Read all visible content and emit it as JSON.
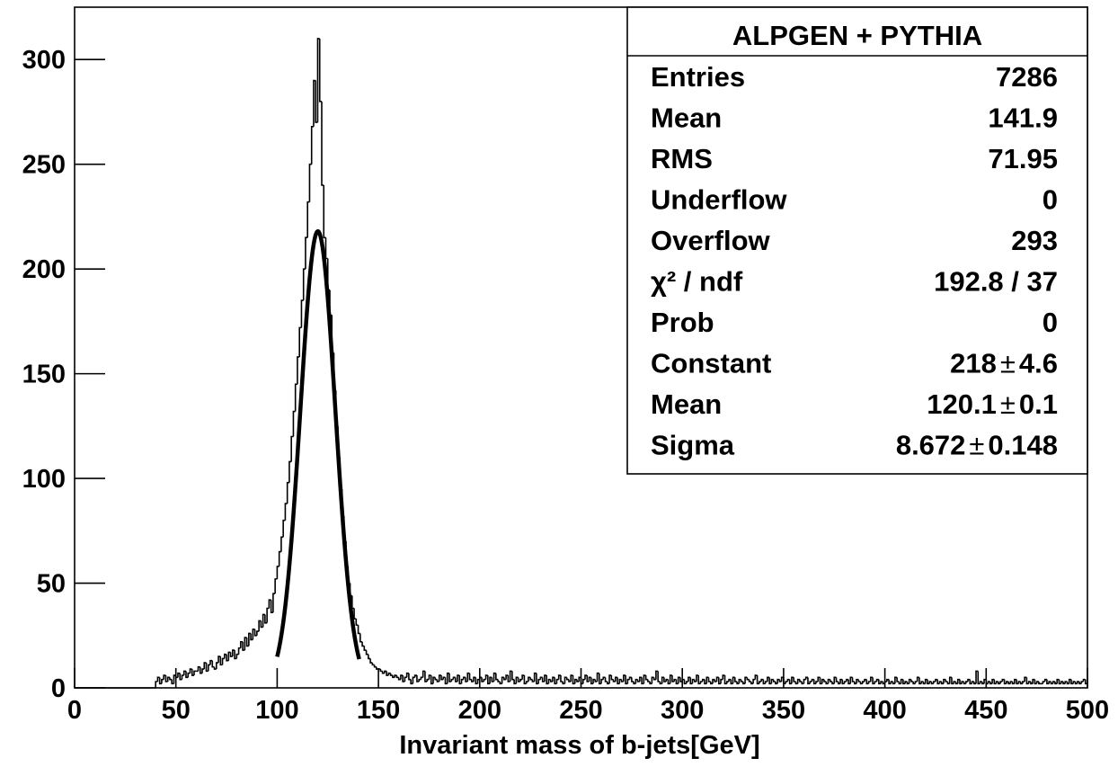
{
  "chart_data": {
    "type": "histogram",
    "x_label": "Invariant mass of b-jets[GeV]",
    "xlim": [
      0,
      500
    ],
    "ylim": [
      0,
      325
    ],
    "xticks": [
      0,
      50,
      100,
      150,
      200,
      250,
      300,
      350,
      400,
      450,
      500
    ],
    "yticks": [
      0,
      50,
      100,
      150,
      200,
      250,
      300
    ],
    "color": "#000000",
    "fit_color": "#000000",
    "bins": [
      0,
      40,
      41,
      42,
      43,
      44,
      45,
      46,
      47,
      48,
      49,
      50,
      51,
      52,
      53,
      54,
      55,
      56,
      57,
      58,
      59,
      60,
      61,
      62,
      63,
      64,
      65,
      66,
      67,
      68,
      69,
      70,
      71,
      72,
      73,
      74,
      75,
      76,
      77,
      78,
      79,
      80,
      81,
      82,
      83,
      84,
      85,
      86,
      87,
      88,
      89,
      90,
      91,
      92,
      93,
      94,
      95,
      96,
      97,
      98,
      99,
      100,
      101,
      102,
      103,
      104,
      105,
      106,
      107,
      108,
      109,
      110,
      111,
      112,
      113,
      114,
      115,
      116,
      117,
      118,
      119,
      120,
      121,
      122,
      123,
      124,
      125,
      126,
      127,
      128,
      129,
      130,
      131,
      132,
      133,
      134,
      135,
      136,
      137,
      138,
      139,
      140,
      141,
      142,
      143,
      144,
      145,
      146,
      147,
      148,
      149,
      150,
      151,
      152,
      153,
      154,
      155,
      156,
      157,
      158,
      159,
      160,
      161,
      162,
      163,
      164,
      165,
      166,
      167,
      168,
      169,
      170,
      171,
      172,
      173,
      174,
      175,
      176,
      177,
      178,
      179,
      180,
      181,
      182,
      183,
      184,
      185,
      186,
      187,
      188,
      189,
      190,
      191,
      192,
      193,
      194,
      195,
      196,
      197,
      198,
      199,
      200,
      201,
      202,
      203,
      204,
      205,
      206,
      207,
      208,
      209,
      210,
      211,
      212,
      213,
      214,
      215,
      216,
      217,
      218,
      219,
      220,
      221,
      222,
      223,
      224,
      225,
      226,
      227,
      228,
      229,
      230,
      231,
      232,
      233,
      234,
      235,
      236,
      237,
      238,
      239,
      240,
      241,
      242,
      243,
      244,
      245,
      246,
      247,
      248,
      249,
      250,
      251,
      252,
      253,
      254,
      255,
      256,
      257,
      258,
      259,
      260,
      261,
      262,
      263,
      264,
      265,
      266,
      267,
      268,
      269,
      270,
      271,
      272,
      273,
      274,
      275,
      276,
      277,
      278,
      279,
      280,
      281,
      282,
      283,
      284,
      285,
      286,
      287,
      288,
      289,
      290,
      291,
      292,
      293,
      294,
      295,
      296,
      297,
      298,
      299,
      300,
      301,
      302,
      303,
      304,
      305,
      306,
      307,
      308,
      309,
      310,
      311,
      312,
      313,
      314,
      315,
      316,
      317,
      318,
      319,
      320,
      321,
      322,
      323,
      324,
      325,
      326,
      327,
      328,
      329,
      330,
      331,
      332,
      333,
      334,
      335,
      336,
      337,
      338,
      339,
      340,
      341,
      342,
      343,
      344,
      345,
      346,
      347,
      348,
      349,
      350,
      351,
      352,
      353,
      354,
      355,
      356,
      357,
      358,
      359,
      360,
      361,
      362,
      363,
      364,
      365,
      366,
      367,
      368,
      369,
      370,
      371,
      372,
      373,
      374,
      375,
      376,
      377,
      378,
      379,
      380,
      381,
      382,
      383,
      384,
      385,
      386,
      387,
      388,
      389,
      390,
      391,
      392,
      393,
      394,
      395,
      396,
      397,
      398,
      399,
      400,
      401,
      402,
      403,
      404,
      405,
      406,
      407,
      408,
      409,
      410,
      411,
      412,
      413,
      414,
      415,
      416,
      417,
      418,
      419,
      420,
      421,
      422,
      423,
      424,
      425,
      426,
      427,
      428,
      429,
      430,
      431,
      432,
      433,
      434,
      435,
      436,
      437,
      438,
      439,
      440,
      441,
      442,
      443,
      444,
      445,
      446,
      447,
      448,
      449,
      450,
      451,
      452,
      453,
      454,
      455,
      456,
      457,
      458,
      459,
      460,
      461,
      462,
      463,
      464,
      465,
      466,
      467,
      468,
      469,
      470,
      471,
      472,
      473,
      474,
      475,
      476,
      477,
      478,
      479,
      480,
      481,
      482,
      483,
      484,
      485,
      486,
      487,
      488,
      489,
      490,
      491,
      492,
      493,
      494,
      495,
      496,
      497,
      498,
      499,
      500
    ],
    "values": [
      0,
      3,
      5,
      2,
      4,
      6,
      3,
      5,
      4,
      2,
      6,
      5,
      7,
      4,
      6,
      8,
      5,
      7,
      9,
      6,
      8,
      8,
      10,
      7,
      9,
      12,
      8,
      11,
      13,
      10,
      9,
      12,
      15,
      11,
      14,
      16,
      13,
      17,
      15,
      18,
      14,
      16,
      19,
      22,
      18,
      24,
      20,
      26,
      23,
      28,
      25,
      27,
      32,
      29,
      35,
      31,
      38,
      42,
      36,
      45,
      52,
      58,
      65,
      72,
      80,
      88,
      98,
      108,
      120,
      132,
      145,
      158,
      172,
      185,
      200,
      215,
      232,
      250,
      268,
      290,
      270,
      310,
      280,
      240,
      215,
      205,
      190,
      178,
      160,
      142,
      125,
      110,
      95,
      82,
      70,
      58,
      50,
      44,
      38,
      33,
      30,
      26,
      22,
      20,
      18,
      16,
      14,
      12,
      11,
      10,
      9,
      9,
      8,
      7,
      8,
      6,
      7,
      6,
      5,
      6,
      5,
      4,
      6,
      3,
      5,
      7,
      4,
      2,
      5,
      6,
      3,
      4,
      5,
      8,
      3,
      4,
      6,
      2,
      5,
      4,
      3,
      6,
      4,
      5,
      2,
      7,
      3,
      4,
      5,
      3,
      6,
      2,
      4,
      5,
      3,
      7,
      4,
      3,
      5,
      2,
      4,
      5,
      3,
      4,
      6,
      2,
      5,
      3,
      7,
      4,
      3,
      2,
      5,
      4,
      6,
      3,
      8,
      4,
      2,
      5,
      3,
      4,
      6,
      2,
      3,
      5,
      4,
      3,
      7,
      2,
      4,
      5,
      3,
      6,
      2,
      4,
      3,
      5,
      2,
      4,
      6,
      3,
      2,
      5,
      4,
      3,
      6,
      2,
      4,
      3,
      5,
      2,
      4,
      6,
      3,
      5,
      2,
      4,
      3,
      7,
      2,
      4,
      5,
      3,
      2,
      6,
      4,
      3,
      5,
      2,
      4,
      3,
      6,
      2,
      4,
      5,
      3,
      2,
      4,
      3,
      5,
      2,
      6,
      4,
      3,
      2,
      5,
      4,
      8,
      3,
      2,
      5,
      3,
      4,
      2,
      6,
      3,
      4,
      2,
      5,
      3,
      4,
      2,
      3,
      5,
      2,
      4,
      3,
      6,
      2,
      3,
      4,
      2,
      5,
      3,
      2,
      4,
      3,
      5,
      2,
      4,
      6,
      2,
      3,
      4,
      2,
      5,
      3,
      2,
      4,
      3,
      2,
      5,
      4,
      3,
      2,
      4,
      6,
      2,
      3,
      4,
      2,
      3,
      5,
      2,
      4,
      3,
      2,
      4,
      3,
      5,
      2,
      3,
      4,
      2,
      5,
      3,
      2,
      4,
      3,
      2,
      4,
      5,
      2,
      3,
      4,
      2,
      3,
      5,
      2,
      4,
      3,
      2,
      4,
      3,
      2,
      5,
      3,
      2,
      4,
      2,
      3,
      4,
      2,
      5,
      3,
      2,
      4,
      3,
      2,
      3,
      4,
      2,
      3,
      5,
      2,
      3,
      4,
      2,
      3,
      2,
      3,
      4,
      2,
      3,
      2,
      5,
      3,
      2,
      4,
      2,
      3,
      2,
      4,
      3,
      2,
      3,
      5,
      2,
      3,
      2,
      4,
      2,
      3,
      2,
      3,
      4,
      2,
      3,
      2,
      4,
      3,
      2,
      5,
      2,
      3,
      2,
      4,
      2,
      3,
      2,
      3,
      4,
      2,
      3,
      2,
      8,
      2,
      3,
      2,
      4,
      2,
      3,
      2,
      4,
      2,
      3,
      2,
      3,
      4,
      2,
      3,
      2,
      3,
      2,
      4,
      2,
      3,
      2,
      3,
      5,
      2,
      3,
      2,
      4,
      2,
      3,
      2,
      2,
      3,
      4,
      2,
      3,
      2,
      3,
      2,
      4,
      2,
      3,
      2,
      3,
      2,
      4,
      2,
      3,
      2,
      3,
      2,
      3,
      4,
      2
    ],
    "fit_range": [
      100,
      140.5
    ],
    "stats": {
      "title": "ALPGEN + PYTHIA",
      "pm": "±",
      "rows": [
        {
          "name": "Entries",
          "value": 7286
        },
        {
          "name": "Mean",
          "value": 141.9
        },
        {
          "name": "RMS",
          "value": 71.95
        },
        {
          "name": "Underflow",
          "value": 0
        },
        {
          "name": "Overflow",
          "value": 293
        },
        {
          "name": "χ² / ndf",
          "value": "192.8 / 37"
        },
        {
          "name": "Prob",
          "value": 0
        },
        {
          "name": "Constant",
          "value": 218,
          "error": 4.6
        },
        {
          "name": "Mean",
          "value": 120.1,
          "error": 0.1
        },
        {
          "name": "Sigma",
          "value": 8.672,
          "error": 0.148
        }
      ]
    }
  }
}
